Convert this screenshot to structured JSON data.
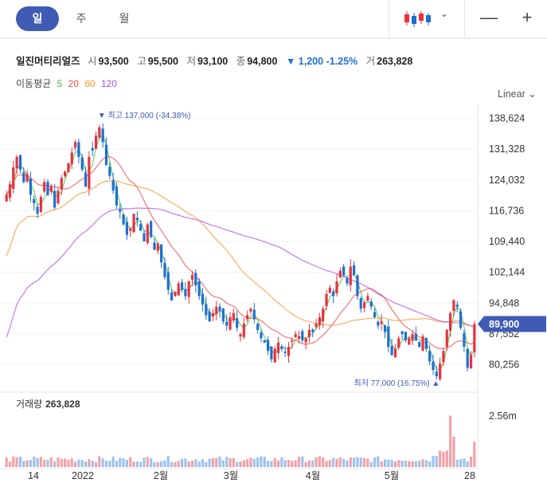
{
  "tabs": [
    "일",
    "주",
    "월"
  ],
  "zoom_out": "—",
  "zoom_in": "+",
  "chart_type_icon": "candlestick-icon",
  "stock": {
    "name": "일진머티리얼즈",
    "open_label": "시",
    "open": "93,500",
    "high_label": "고",
    "high": "95,500",
    "low_label": "저",
    "low": "93,100",
    "close_label": "종",
    "close": "94,800",
    "change": "▼ 1,200 -1.25%",
    "volume_label": "거",
    "volume": "263,828"
  },
  "ma": {
    "label": "이동평균",
    "periods": [
      "5",
      "20",
      "60",
      "120"
    ],
    "colors": [
      "#3fbf3f",
      "#f04848",
      "#f5962a",
      "#b04fe0"
    ]
  },
  "scale_button": "Linear",
  "chart_data": {
    "type": "candlestick",
    "y_ticks": [
      138624,
      131328,
      124032,
      116736,
      109440,
      102144,
      94848,
      87552,
      80256
    ],
    "y_tick_labels": [
      "138,624",
      "131,328",
      "124,032",
      "116,736",
      "109,440",
      "102,144",
      "94,848",
      "87,552",
      "80,256"
    ],
    "ylim": [
      74500,
      142500
    ],
    "x_labels": [
      "14",
      "2022",
      "2월",
      "3월",
      "4월",
      "5월",
      "28"
    ],
    "current_price": "89,900",
    "high_annotation": "▼ 최고 137,000 (-34.38%)",
    "low_annotation": "최저 77,000 (16.75%) ▲",
    "up_color": "#e8323c",
    "down_color": "#1e6fd0",
    "candles_close": [
      120500,
      123000,
      127000,
      129500,
      126500,
      123500,
      125500,
      120500,
      118500,
      116000,
      120000,
      123500,
      120500,
      122500,
      117500,
      121500,
      124500,
      126000,
      128000,
      130500,
      133000,
      129500,
      126500,
      122500,
      129500,
      131000,
      134500,
      136500,
      133000,
      127500,
      125000,
      121500,
      118000,
      116500,
      113500,
      111000,
      112500,
      116000,
      114500,
      112000,
      109500,
      113500,
      110500,
      107500,
      109000,
      104500,
      101000,
      98000,
      95500,
      97500,
      99500,
      98000,
      96500,
      100000,
      101500,
      99000,
      96500,
      94500,
      92000,
      90500,
      92500,
      94000,
      93000,
      90500,
      89500,
      91500,
      92500,
      89000,
      87500,
      90000,
      92000,
      93500,
      91000,
      88500,
      86500,
      85500,
      83500,
      81500,
      84000,
      85500,
      84000,
      83000,
      84500,
      86000,
      87500,
      87000,
      86000,
      86500,
      88500,
      88000,
      90000,
      91500,
      93500,
      97000,
      98500,
      96500,
      100000,
      102500,
      101500,
      99500,
      103500,
      101500,
      96500,
      93500,
      95000,
      96500,
      94000,
      91500,
      89500,
      90500,
      88000,
      84500,
      82500,
      84000,
      86500,
      87500,
      86000,
      86500,
      87500,
      86000,
      84500,
      87000,
      84000,
      81000,
      79000,
      77500,
      80500,
      83500,
      88500,
      92500,
      95500,
      94000,
      89000,
      84500,
      79500,
      82500,
      89900
    ],
    "volume_note": "거래량",
    "volume_value": "263,828",
    "volume_tick": "2.56m",
    "volume_max": 2560000
  }
}
